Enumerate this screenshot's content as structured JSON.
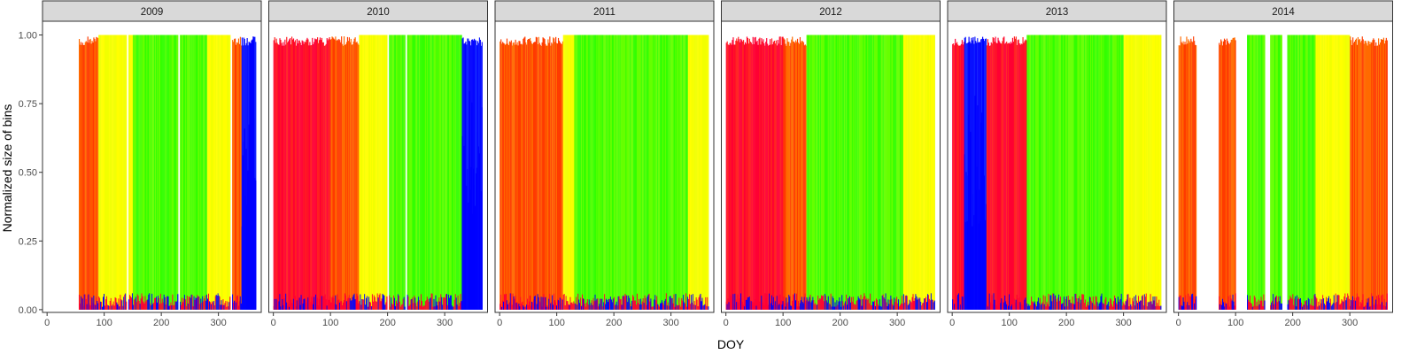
{
  "chart_data": {
    "type": "area",
    "facet_variable": "year",
    "panels": [
      "2009",
      "2010",
      "2011",
      "2012",
      "2013",
      "2014"
    ],
    "xlabel": "DOY",
    "ylabel": "Normalized size of bins",
    "xlim": [
      -8,
      375
    ],
    "ylim": [
      -0.01,
      1.05
    ],
    "xticks": [
      0,
      100,
      200,
      300
    ],
    "yticks": [
      0.0,
      0.25,
      0.5,
      0.75,
      1.0
    ],
    "ytick_labels": [
      "0.00",
      "0.25",
      "0.50",
      "0.75",
      "1.00"
    ],
    "colors": {
      "panel_bg": "#ffffff",
      "strip_bg": "#d9d9d9",
      "border": "#333333",
      "palette": [
        "#ff0033",
        "#0000ff",
        "#00e5ff",
        "#00ff44",
        "#7fff00",
        "#ffff00",
        "#ff8000",
        "#ff2000"
      ]
    },
    "series_by_panel": [
      {
        "year": "2009",
        "coverage": [
          [
            55,
            365
          ]
        ],
        "gaps": [
          140,
          230,
          322
        ],
        "phases": [
          [
            55,
            "orange"
          ],
          [
            90,
            "yellow"
          ],
          [
            150,
            "green"
          ],
          [
            230,
            "green"
          ],
          [
            280,
            "yellow"
          ],
          [
            320,
            "orange"
          ],
          [
            340,
            "blue"
          ],
          [
            365,
            "orange"
          ]
        ]
      },
      {
        "year": "2010",
        "coverage": [
          [
            0,
            365
          ]
        ],
        "gaps": [
          200,
          232
        ],
        "phases": [
          [
            0,
            "red"
          ],
          [
            100,
            "orange"
          ],
          [
            150,
            "yellow"
          ],
          [
            200,
            "green"
          ],
          [
            300,
            "green"
          ],
          [
            330,
            "blue"
          ],
          [
            365,
            "orange"
          ]
        ]
      },
      {
        "year": "2011",
        "coverage": [
          [
            0,
            365
          ]
        ],
        "gaps": [],
        "phases": [
          [
            0,
            "orange"
          ],
          [
            110,
            "yellow"
          ],
          [
            130,
            "green"
          ],
          [
            290,
            "green"
          ],
          [
            330,
            "yellow"
          ],
          [
            365,
            "orange"
          ]
        ]
      },
      {
        "year": "2012",
        "coverage": [
          [
            0,
            365
          ]
        ],
        "gaps": [],
        "phases": [
          [
            0,
            "red"
          ],
          [
            100,
            "orange"
          ],
          [
            140,
            "green"
          ],
          [
            310,
            "yellow"
          ],
          [
            365,
            "red"
          ]
        ]
      },
      {
        "year": "2013",
        "coverage": [
          [
            0,
            365
          ]
        ],
        "gaps": [],
        "phases": [
          [
            0,
            "red"
          ],
          [
            20,
            "blue"
          ],
          [
            60,
            "red"
          ],
          [
            130,
            "green"
          ],
          [
            300,
            "yellow"
          ],
          [
            365,
            "red"
          ]
        ]
      },
      {
        "year": "2014",
        "coverage": [
          [
            0,
            30
          ],
          [
            70,
            100
          ],
          [
            120,
            150
          ],
          [
            160,
            180
          ],
          [
            190,
            365
          ]
        ],
        "gaps": [],
        "phases": [
          [
            0,
            "orange"
          ],
          [
            120,
            "green"
          ],
          [
            240,
            "yellow"
          ],
          [
            300,
            "orange"
          ],
          [
            365,
            "orange"
          ]
        ]
      }
    ]
  }
}
